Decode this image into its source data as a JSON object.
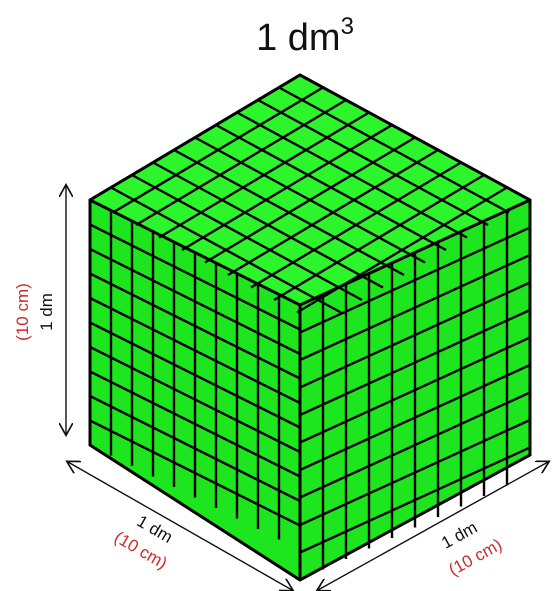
{
  "title": {
    "main": "1 dm",
    "sup": "3"
  },
  "height_label": {
    "primary": "1 dm",
    "secondary": "(10 cm)"
  },
  "left_label": {
    "primary": "1 dm",
    "secondary": "(10 cm)"
  },
  "right_label": {
    "primary": "1 dm",
    "secondary": "(10 cm)"
  },
  "colors": {
    "cube_fill": "#1ee61e",
    "cube_top_fill": "#2cf52c",
    "grid_line": "#000000",
    "label_black": "#111111",
    "label_red": "#cc2a2a"
  },
  "grid": {
    "cells_per_edge": 10
  }
}
